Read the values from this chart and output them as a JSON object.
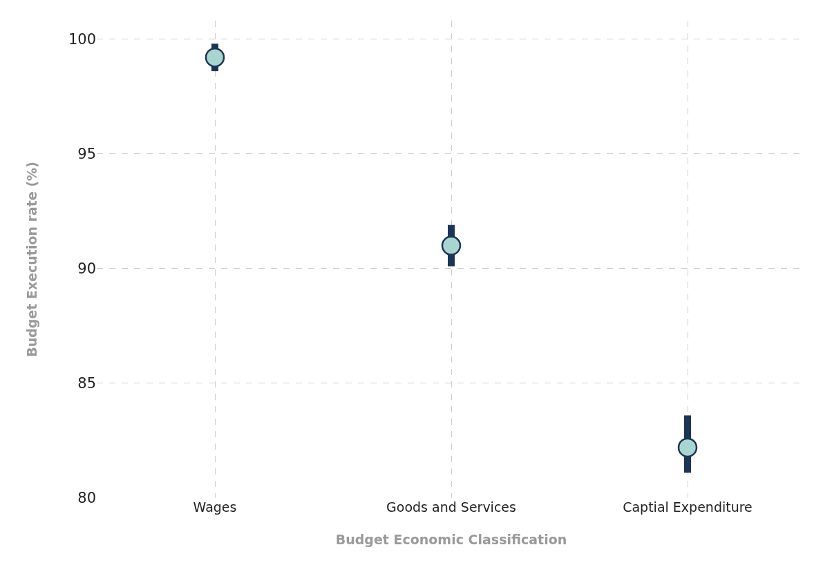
{
  "chart_data": {
    "type": "scatter",
    "xlabel": "Budget Economic Classification",
    "ylabel": "Budget Execution rate (%)",
    "categories": [
      "Wages",
      "Goods and Services",
      "Captial Expenditure"
    ],
    "series": [
      {
        "color": "#a8d5cf",
        "values": [
          99.2,
          91.0,
          82.2
        ],
        "errors": [
          [
            98.6,
            99.8
          ],
          [
            90.1,
            91.9
          ],
          [
            81.1,
            83.6
          ]
        ]
      }
    ],
    "ylim": [
      80,
      100.8
    ],
    "yticks": [
      80,
      85,
      90,
      95,
      100
    ],
    "grid": true,
    "marker": "circle"
  }
}
